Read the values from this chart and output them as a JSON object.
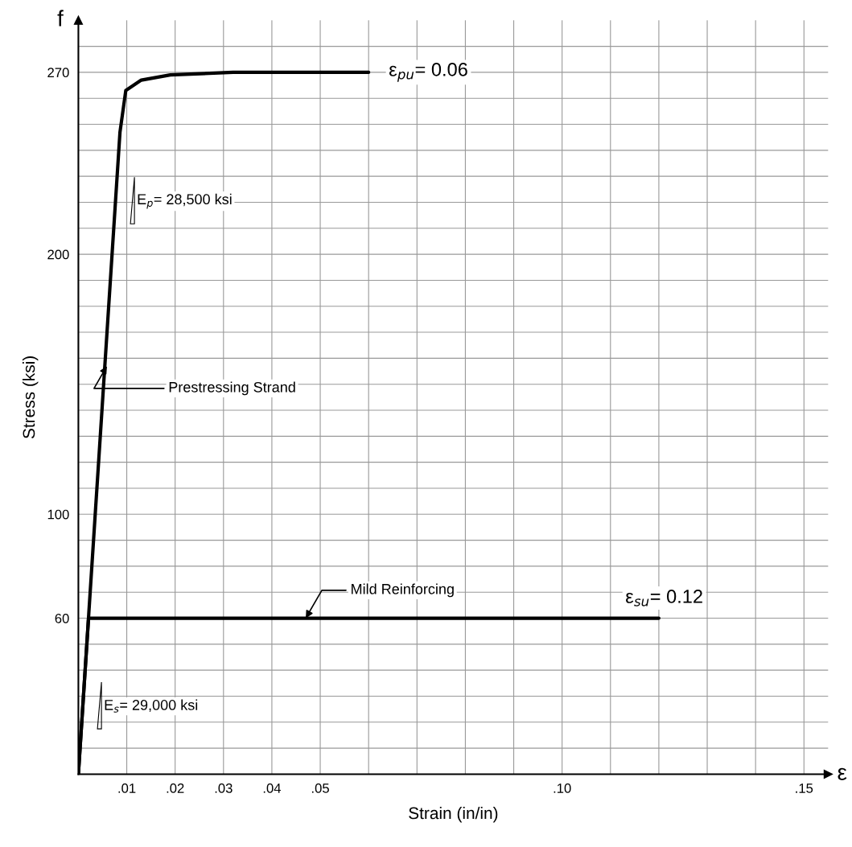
{
  "chart_data": {
    "type": "line",
    "xlabel": "Strain (in/in)",
    "ylabel": "Stress (ksi)",
    "xlim": [
      0,
      0.155
    ],
    "ylim": [
      0,
      290
    ],
    "xticks": [
      {
        "value": 0,
        "label": null
      },
      {
        "value": 0.01,
        "label": ".01"
      },
      {
        "value": 0.02,
        "label": ".02"
      },
      {
        "value": 0.03,
        "label": ".03"
      },
      {
        "value": 0.04,
        "label": ".04"
      },
      {
        "value": 0.05,
        "label": ".05"
      },
      {
        "value": 0.06,
        "label": null
      },
      {
        "value": 0.07,
        "label": null
      },
      {
        "value": 0.08,
        "label": null
      },
      {
        "value": 0.09,
        "label": null
      },
      {
        "value": 0.1,
        "label": ".10"
      },
      {
        "value": 0.11,
        "label": null
      },
      {
        "value": 0.12,
        "label": null
      },
      {
        "value": 0.13,
        "label": null
      },
      {
        "value": 0.14,
        "label": null
      },
      {
        "value": 0.15,
        "label": ".15"
      }
    ],
    "yticks": [
      {
        "value": 0,
        "label": null
      },
      {
        "value": 10,
        "label": null
      },
      {
        "value": 20,
        "label": null
      },
      {
        "value": 30,
        "label": null
      },
      {
        "value": 40,
        "label": null
      },
      {
        "value": 50,
        "label": null
      },
      60,
      {
        "value": 70,
        "label": null
      },
      {
        "value": 80,
        "label": null
      },
      {
        "value": 90,
        "label": null
      },
      100,
      {
        "value": 110,
        "label": null
      },
      {
        "value": 120,
        "label": null
      },
      {
        "value": 130,
        "label": null
      },
      {
        "value": 140,
        "label": null
      },
      {
        "value": 150,
        "label": null
      },
      {
        "value": 160,
        "label": null
      },
      {
        "value": 170,
        "label": null
      },
      {
        "value": 180,
        "label": null
      },
      {
        "value": 190,
        "label": null
      },
      200,
      {
        "value": 210,
        "label": null
      },
      {
        "value": 220,
        "label": null
      },
      {
        "value": 230,
        "label": null
      },
      {
        "value": 240,
        "label": null
      },
      {
        "value": 250,
        "label": null
      },
      {
        "value": 260,
        "label": null
      },
      270,
      {
        "value": 280,
        "label": null
      }
    ],
    "grid": true,
    "marker": "none",
    "line_style": "solid",
    "series": [
      {
        "color": "#000000",
        "x": [
          0,
          0.0086,
          0.0098,
          0.013,
          0.019,
          0.032,
          0.06
        ],
        "values": [
          0,
          247,
          263,
          267,
          269,
          270,
          270
        ]
      },
      {
        "color": "#000000",
        "x": [
          0,
          0.0021,
          0.12
        ],
        "values": [
          0,
          60,
          60
        ]
      }
    ],
    "annotations": [
      {
        "text": "ε$_{pu}$= 0.06",
        "x": 0.06,
        "y": 270
      },
      {
        "text": "ε$_{su}$= 0.12",
        "x": 0.12,
        "y": 60
      },
      {
        "text": "Prestressing Strand",
        "x": 0.0059,
        "y": 157
      },
      {
        "text": "Mild Reinforcing",
        "x": 0.047,
        "y": 60
      },
      "E$_{p}$= 28,500 ksi",
      "E$_{s}$= 29,000 ksi",
      "f",
      "ε"
    ]
  }
}
